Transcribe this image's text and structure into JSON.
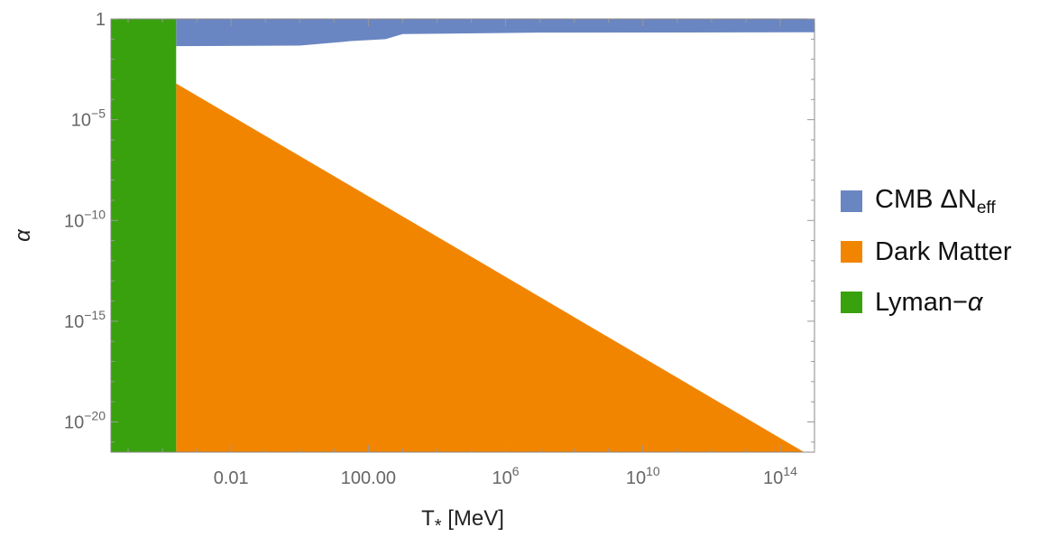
{
  "chart_data": {
    "type": "area",
    "xlabel": "T",
    "xlabel_sub": "*",
    "xlabel_unit": "[MeV]",
    "ylabel": "α",
    "x_scale": "log10",
    "y_scale": "log10",
    "xlim_log10": [
      -5.5,
      15
    ],
    "ylim_log10": [
      -21.5,
      0
    ],
    "x_ticks": [
      {
        "log10": -2,
        "label": "0.01"
      },
      {
        "log10": 2,
        "label": "100.00"
      },
      {
        "log10": 6,
        "base": "10",
        "exp": "6"
      },
      {
        "log10": 10,
        "base": "10",
        "exp": "10"
      },
      {
        "log10": 14,
        "base": "10",
        "exp": "14"
      }
    ],
    "y_ticks": [
      {
        "log10": 0,
        "label": "1"
      },
      {
        "log10": -5,
        "base": "10",
        "exp": "−5"
      },
      {
        "log10": -10,
        "base": "10",
        "exp": "−10"
      },
      {
        "log10": -15,
        "base": "10",
        "exp": "−15"
      },
      {
        "log10": -20,
        "base": "10",
        "exp": "−20"
      }
    ],
    "series": [
      {
        "name": "CMB ΔN",
        "name_sub": "eff",
        "color": "#6a86c2",
        "region": "alpha above boundary",
        "boundary": [
          {
            "log10_x": -3.6,
            "log10_y": -1.35
          },
          {
            "log10_x": 0.0,
            "log10_y": -1.32
          },
          {
            "log10_x": 1.5,
            "log10_y": -1.1
          },
          {
            "log10_x": 2.5,
            "log10_y": -1.0
          },
          {
            "log10_x": 3.0,
            "log10_y": -0.75
          },
          {
            "log10_x": 7.0,
            "log10_y": -0.68
          },
          {
            "log10_x": 15.0,
            "log10_y": -0.66
          }
        ]
      },
      {
        "name": "Dark Matter",
        "color": "#f28500",
        "region": "alpha below line",
        "line": [
          {
            "log10_x": -3.6,
            "log10_y": -3.2
          },
          {
            "log10_x": 14.7,
            "log10_y": -21.5
          }
        ]
      },
      {
        "name": "Lyman−α",
        "color": "#3aa10e",
        "region": "T below bound",
        "x_max_log10": -3.6
      }
    ]
  }
}
